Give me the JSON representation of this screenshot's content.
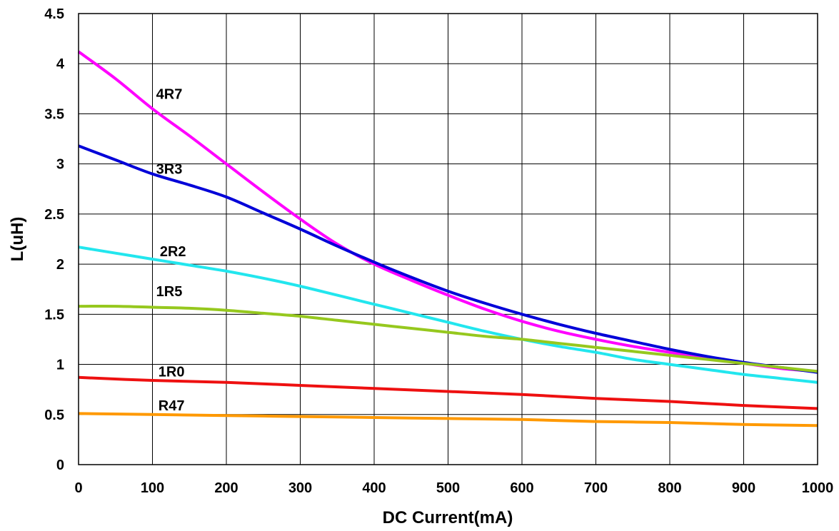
{
  "chart_data": {
    "type": "line",
    "title": "",
    "xlabel": "DC Current(mA)",
    "ylabel": "L(uH)",
    "xlim": [
      0,
      1000
    ],
    "ylim": [
      0,
      4.5
    ],
    "x_ticks": [
      "0",
      "100",
      "200",
      "300",
      "400",
      "500",
      "600",
      "700",
      "800",
      "900",
      "1000"
    ],
    "y_ticks": [
      "0",
      "0.5",
      "1",
      "1.5",
      "2",
      "2.5",
      "3",
      "3.5",
      "4",
      "4.5"
    ],
    "grid": true,
    "legend": "none",
    "series": [
      {
        "name": "4R7",
        "color": "#ff00ff",
        "label_at": [
          105,
          3.7
        ],
        "points": [
          [
            0,
            4.12
          ],
          [
            50,
            3.85
          ],
          [
            100,
            3.55
          ],
          [
            150,
            3.28
          ],
          [
            200,
            3.0
          ],
          [
            250,
            2.72
          ],
          [
            300,
            2.45
          ],
          [
            350,
            2.2
          ],
          [
            400,
            2.0
          ],
          [
            450,
            1.84
          ],
          [
            500,
            1.69
          ],
          [
            550,
            1.55
          ],
          [
            600,
            1.43
          ],
          [
            650,
            1.33
          ],
          [
            700,
            1.25
          ],
          [
            750,
            1.18
          ],
          [
            800,
            1.12
          ],
          [
            850,
            1.06
          ],
          [
            900,
            1.01
          ],
          [
            950,
            0.96
          ],
          [
            1000,
            0.93
          ]
        ]
      },
      {
        "name": "3R3",
        "color": "#0000d8",
        "label_at": [
          105,
          2.95
        ],
        "points": [
          [
            0,
            3.18
          ],
          [
            50,
            3.04
          ],
          [
            100,
            2.9
          ],
          [
            150,
            2.79
          ],
          [
            200,
            2.67
          ],
          [
            250,
            2.51
          ],
          [
            300,
            2.35
          ],
          [
            350,
            2.18
          ],
          [
            400,
            2.02
          ],
          [
            450,
            1.87
          ],
          [
            500,
            1.73
          ],
          [
            550,
            1.61
          ],
          [
            600,
            1.5
          ],
          [
            650,
            1.4
          ],
          [
            700,
            1.31
          ],
          [
            750,
            1.23
          ],
          [
            800,
            1.15
          ],
          [
            850,
            1.08
          ],
          [
            900,
            1.02
          ],
          [
            950,
            0.97
          ],
          [
            1000,
            0.92
          ]
        ]
      },
      {
        "name": "2R2",
        "color": "#22e6ee",
        "label_at": [
          110,
          2.13
        ],
        "points": [
          [
            0,
            2.17
          ],
          [
            50,
            2.11
          ],
          [
            100,
            2.05
          ],
          [
            150,
            1.99
          ],
          [
            200,
            1.93
          ],
          [
            250,
            1.86
          ],
          [
            300,
            1.78
          ],
          [
            350,
            1.69
          ],
          [
            400,
            1.6
          ],
          [
            450,
            1.51
          ],
          [
            500,
            1.42
          ],
          [
            550,
            1.33
          ],
          [
            600,
            1.25
          ],
          [
            650,
            1.18
          ],
          [
            700,
            1.12
          ],
          [
            750,
            1.05
          ],
          [
            800,
            1.0
          ],
          [
            850,
            0.95
          ],
          [
            900,
            0.9
          ],
          [
            950,
            0.86
          ],
          [
            1000,
            0.82
          ]
        ]
      },
      {
        "name": "1R5",
        "color": "#96c81e",
        "label_at": [
          105,
          1.73
        ],
        "points": [
          [
            0,
            1.58
          ],
          [
            50,
            1.58
          ],
          [
            100,
            1.57
          ],
          [
            150,
            1.56
          ],
          [
            200,
            1.54
          ],
          [
            250,
            1.51
          ],
          [
            300,
            1.48
          ],
          [
            350,
            1.44
          ],
          [
            400,
            1.4
          ],
          [
            450,
            1.36
          ],
          [
            500,
            1.32
          ],
          [
            550,
            1.28
          ],
          [
            600,
            1.25
          ],
          [
            650,
            1.21
          ],
          [
            700,
            1.17
          ],
          [
            750,
            1.13
          ],
          [
            800,
            1.09
          ],
          [
            850,
            1.05
          ],
          [
            900,
            1.01
          ],
          [
            950,
            0.97
          ],
          [
            1000,
            0.93
          ]
        ]
      },
      {
        "name": "1R0",
        "color": "#ee1010",
        "label_at": [
          108,
          0.93
        ],
        "points": [
          [
            0,
            0.87
          ],
          [
            100,
            0.84
          ],
          [
            200,
            0.82
          ],
          [
            300,
            0.79
          ],
          [
            400,
            0.76
          ],
          [
            500,
            0.73
          ],
          [
            600,
            0.7
          ],
          [
            700,
            0.66
          ],
          [
            800,
            0.63
          ],
          [
            900,
            0.59
          ],
          [
            1000,
            0.56
          ]
        ]
      },
      {
        "name": "R47",
        "color": "#ff9900",
        "label_at": [
          108,
          0.59
        ],
        "points": [
          [
            0,
            0.51
          ],
          [
            100,
            0.5
          ],
          [
            200,
            0.49
          ],
          [
            300,
            0.48
          ],
          [
            400,
            0.47
          ],
          [
            500,
            0.46
          ],
          [
            600,
            0.45
          ],
          [
            700,
            0.43
          ],
          [
            800,
            0.42
          ],
          [
            900,
            0.4
          ],
          [
            1000,
            0.39
          ]
        ]
      }
    ]
  }
}
